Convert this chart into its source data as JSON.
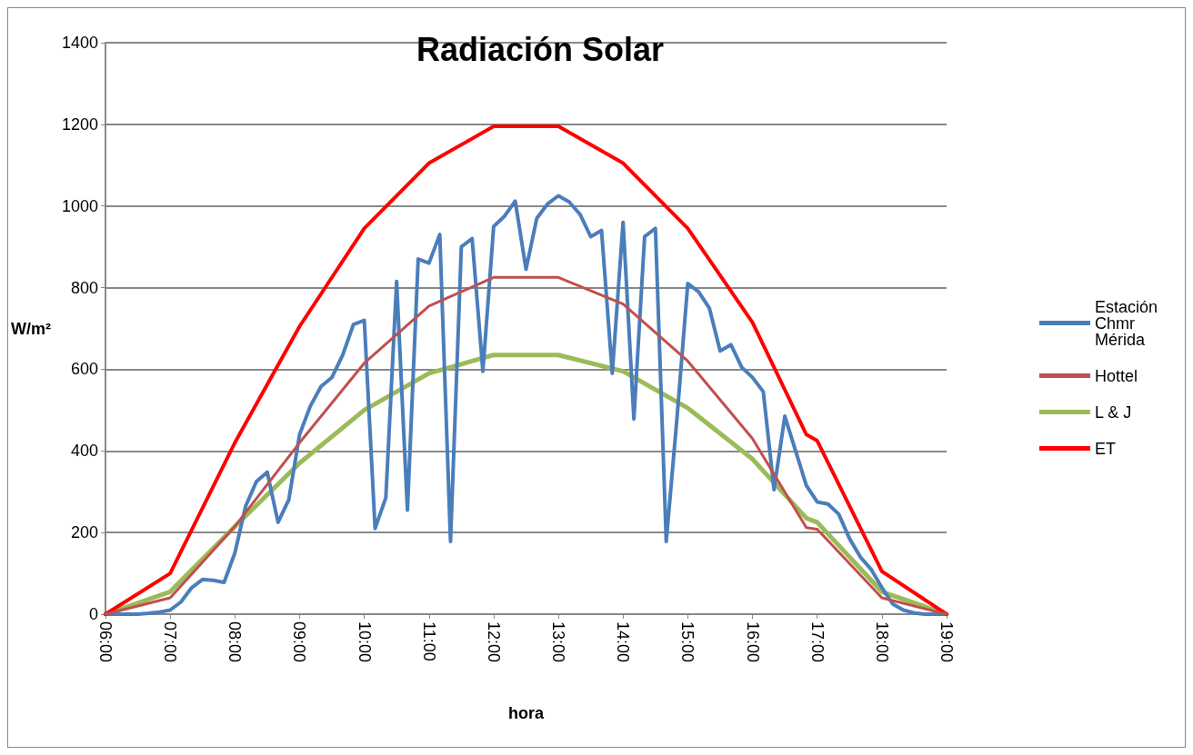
{
  "chart_data": {
    "type": "line",
    "title": "Radiación Solar",
    "xlabel": "hora",
    "ylabel": "W/m²",
    "xlim": [
      6,
      19
    ],
    "xticks": [
      {
        "value": 6,
        "label": "06:00"
      },
      {
        "value": 7,
        "label": "07:00"
      },
      {
        "value": 8,
        "label": "08:00"
      },
      {
        "value": 9,
        "label": "09:00"
      },
      {
        "value": 10,
        "label": "10:00"
      },
      {
        "value": 11,
        "label": "11:00"
      },
      {
        "value": 12,
        "label": "12:00"
      },
      {
        "value": 13,
        "label": "13:00"
      },
      {
        "value": 14,
        "label": "14:00"
      },
      {
        "value": 15,
        "label": "15:00"
      },
      {
        "value": 16,
        "label": "16:00"
      },
      {
        "value": 17,
        "label": "17:00"
      },
      {
        "value": 18,
        "label": "18:00"
      },
      {
        "value": 19,
        "label": "19:00"
      }
    ],
    "ylim": [
      0,
      1400
    ],
    "yticks": [
      0,
      200,
      400,
      600,
      800,
      1000,
      1200,
      1400
    ],
    "grid": "y",
    "legend": "right",
    "marker": "none",
    "line_style": "solid",
    "series": [
      {
        "name": "Estación Chmr Mérida",
        "color": "#4a7ebb",
        "x": [
          6,
          6.167,
          6.333,
          6.5,
          6.667,
          6.833,
          7,
          7.167,
          7.333,
          7.5,
          7.667,
          7.833,
          8,
          8.167,
          8.333,
          8.5,
          8.667,
          8.833,
          9,
          9.167,
          9.333,
          9.5,
          9.667,
          9.833,
          10,
          10.167,
          10.333,
          10.5,
          10.667,
          10.833,
          11,
          11.167,
          11.333,
          11.5,
          11.667,
          11.833,
          12,
          12.167,
          12.333,
          12.5,
          12.667,
          12.833,
          13,
          13.167,
          13.333,
          13.5,
          13.667,
          13.833,
          14,
          14.167,
          14.333,
          14.5,
          14.667,
          14.833,
          15,
          15.167,
          15.333,
          15.5,
          15.667,
          15.833,
          16,
          16.167,
          16.333,
          16.5,
          16.667,
          16.833,
          17,
          17.167,
          17.333,
          17.5,
          17.667,
          17.833,
          18,
          18.167,
          18.333,
          18.5,
          18.667,
          18.833,
          19
        ],
        "values": [
          0,
          0,
          0,
          0,
          2,
          5,
          10,
          30,
          65,
          85,
          83,
          78,
          150,
          265,
          325,
          348,
          225,
          280,
          440,
          510,
          558,
          580,
          635,
          710,
          720,
          210,
          285,
          815,
          255,
          870,
          860,
          930,
          178,
          900,
          920,
          595,
          950,
          975,
          1012,
          845,
          970,
          1005,
          1025,
          1010,
          980,
          925,
          940,
          590,
          960,
          478,
          925,
          945,
          178,
          480,
          810,
          790,
          750,
          645,
          660,
          605,
          580,
          545,
          305,
          485,
          400,
          315,
          275,
          270,
          245,
          185,
          140,
          110,
          65,
          25,
          10,
          3,
          0,
          0,
          0
        ]
      },
      {
        "name": "Hottel",
        "color": "#c0504d",
        "x": [
          6,
          7,
          8,
          9,
          10,
          11,
          12,
          13,
          14,
          15,
          16,
          16.833,
          17,
          18,
          19
        ],
        "values": [
          0,
          40,
          215,
          420,
          615,
          755,
          825,
          825,
          760,
          620,
          430,
          212,
          208,
          40,
          0
        ]
      },
      {
        "name": "L & J",
        "color": "#9bbb59",
        "x": [
          6,
          7,
          8,
          9,
          10,
          11,
          12,
          13,
          14,
          15,
          16,
          16.833,
          17,
          18,
          19
        ],
        "values": [
          0,
          55,
          215,
          370,
          500,
          590,
          635,
          635,
          595,
          505,
          380,
          235,
          225,
          55,
          0
        ]
      },
      {
        "name": "ET",
        "color": "#ff0000",
        "x": [
          6,
          7,
          8,
          9,
          10,
          11,
          12,
          13,
          14,
          15,
          16,
          16.833,
          17,
          18,
          19
        ],
        "values": [
          0,
          100,
          420,
          705,
          945,
          1105,
          1195,
          1195,
          1105,
          945,
          715,
          440,
          425,
          105,
          0
        ]
      }
    ]
  }
}
